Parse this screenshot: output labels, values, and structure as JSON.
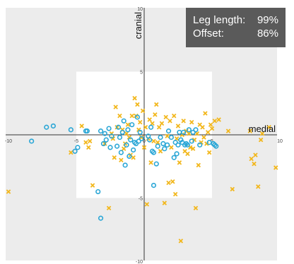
{
  "stats_panel": {
    "rows": [
      {
        "label": "Leg length:",
        "value": "99%"
      },
      {
        "label": "Offset:",
        "value": "86%"
      }
    ]
  },
  "chart_data": {
    "type": "scatter",
    "xlabel": "medial",
    "ylabel": "cranial",
    "xlim": [
      -10,
      10
    ],
    "ylim": [
      -10,
      10
    ],
    "x_ticks": [
      "-10",
      "-5",
      "0",
      "5",
      "10"
    ],
    "y_ticks": [
      "10",
      "5",
      "-5",
      "-10"
    ],
    "safe_zone": {
      "x": [
        -5,
        5
      ],
      "y": [
        -5,
        5
      ]
    },
    "grid": false,
    "colors": {
      "background": "#ececec",
      "safe_zone": "#ffffff",
      "circle_series": "#29a6d6",
      "cross_series": "#f2b71c",
      "stats_panel": "#5a5a5a"
    },
    "series": [
      {
        "marker": "circle",
        "points": [
          [
            -8.3,
            -0.5
          ],
          [
            -7.2,
            0.6
          ],
          [
            -6.7,
            0.7
          ],
          [
            -5.4,
            0.4
          ],
          [
            -5.1,
            -1.3
          ],
          [
            -4.9,
            -1.0
          ],
          [
            -4.3,
            0.3
          ],
          [
            -4.2,
            0.3
          ],
          [
            -3.2,
            0.3
          ],
          [
            -3.0,
            -0.7
          ],
          [
            -2.9,
            0.1
          ],
          [
            -2.8,
            -0.4
          ],
          [
            -2.6,
            0.5
          ],
          [
            -2.5,
            -1.0
          ],
          [
            -2.4,
            -0.1
          ],
          [
            -2.0,
            -0.9
          ],
          [
            -1.9,
            0.6
          ],
          [
            -1.8,
            -0.2
          ],
          [
            -1.7,
            -1.4
          ],
          [
            -1.6,
            0.2
          ],
          [
            -1.5,
            1.1
          ],
          [
            -1.4,
            -2.4
          ],
          [
            -1.3,
            -0.8
          ],
          [
            -1.2,
            0.4
          ],
          [
            -1.1,
            -1.7
          ],
          [
            -1.0,
            -0.4
          ],
          [
            -0.9,
            0.8
          ],
          [
            -0.8,
            -1.2
          ],
          [
            -0.7,
            -0.6
          ],
          [
            -0.6,
            -0.7
          ],
          [
            -0.5,
            1.4
          ],
          [
            -0.4,
            -0.5
          ],
          [
            -0.3,
            0.2
          ],
          [
            -0.2,
            -0.3
          ],
          [
            0.3,
            -0.1
          ],
          [
            0.4,
            -0.4
          ],
          [
            0.5,
            0.6
          ],
          [
            0.6,
            -1.3
          ],
          [
            0.7,
            -1.4
          ],
          [
            0.9,
            -2.3
          ],
          [
            1.0,
            -0.9
          ],
          [
            1.2,
            -0.2
          ],
          [
            1.4,
            -0.7
          ],
          [
            1.5,
            -1.1
          ],
          [
            1.7,
            -0.8
          ],
          [
            1.8,
            0.3
          ],
          [
            2.0,
            -0.2
          ],
          [
            2.2,
            -1.8
          ],
          [
            2.3,
            -0.6
          ],
          [
            2.4,
            -1.5
          ],
          [
            2.5,
            -0.8
          ],
          [
            2.6,
            0.2
          ],
          [
            2.7,
            -0.4
          ],
          [
            2.8,
            -0.6
          ],
          [
            2.9,
            0.2
          ],
          [
            3.0,
            -0.8
          ],
          [
            3.1,
            -0.7
          ],
          [
            3.2,
            -0.8
          ],
          [
            3.3,
            0.4
          ],
          [
            3.5,
            -0.5
          ],
          [
            3.6,
            0.2
          ],
          [
            3.8,
            0.4
          ],
          [
            4.1,
            -0.8
          ],
          [
            4.8,
            -0.6
          ],
          [
            5.1,
            -0.7
          ],
          [
            5.2,
            -0.8
          ],
          [
            5.3,
            -0.9
          ],
          [
            0.7,
            -4.0
          ],
          [
            -3.4,
            -4.5
          ],
          [
            -3.2,
            -6.6
          ]
        ]
      },
      {
        "marker": "cross",
        "points": [
          [
            -10.0,
            -4.5
          ],
          [
            -5.4,
            -1.4
          ],
          [
            -4.6,
            0.7
          ],
          [
            -4.3,
            -0.6
          ],
          [
            -4.1,
            -1.0
          ],
          [
            -4.0,
            -0.5
          ],
          [
            -3.8,
            -4.0
          ],
          [
            -2.9,
            -0.7
          ],
          [
            -2.6,
            -5.8
          ],
          [
            -2.4,
            0.1
          ],
          [
            -2.3,
            -0.3
          ],
          [
            -2.2,
            -1.8
          ],
          [
            -2.1,
            2.2
          ],
          [
            -2.0,
            0.6
          ],
          [
            -1.8,
            1.5
          ],
          [
            -1.7,
            -2.0
          ],
          [
            -1.6,
            0.4
          ],
          [
            -1.5,
            -1.1
          ],
          [
            -1.4,
            -0.7
          ],
          [
            -1.3,
            0.1
          ],
          [
            -1.2,
            0.8
          ],
          [
            -1.1,
            -0.2
          ],
          [
            -1.0,
            -1.6
          ],
          [
            -0.9,
            1.5
          ],
          [
            -0.8,
            -1.8
          ],
          [
            -0.7,
            2.9
          ],
          [
            -0.6,
            1.5
          ],
          [
            -0.5,
            2.4
          ],
          [
            -0.4,
            0.4
          ],
          [
            -0.3,
            1.0
          ],
          [
            -0.2,
            -0.2
          ],
          [
            -0.1,
            1.9
          ],
          [
            0.0,
            -1.0
          ],
          [
            0.1,
            0.6
          ],
          [
            0.2,
            -5.5
          ],
          [
            0.3,
            -0.3
          ],
          [
            0.4,
            1.2
          ],
          [
            0.5,
            -2.2
          ],
          [
            0.6,
            0.9
          ],
          [
            0.7,
            -0.5
          ],
          [
            0.8,
            1.6
          ],
          [
            0.9,
            2.4
          ],
          [
            1.0,
            -0.6
          ],
          [
            1.1,
            0.6
          ],
          [
            1.2,
            -1.3
          ],
          [
            1.3,
            0.9
          ],
          [
            1.5,
            -5.4
          ],
          [
            1.6,
            1.4
          ],
          [
            1.7,
            -0.1
          ],
          [
            1.8,
            -3.8
          ],
          [
            1.9,
            1.1
          ],
          [
            2.0,
            -1.0
          ],
          [
            2.1,
            -3.7
          ],
          [
            2.2,
            1.5
          ],
          [
            2.3,
            -4.7
          ],
          [
            2.4,
            -0.3
          ],
          [
            2.5,
            0.7
          ],
          [
            2.6,
            -2.2
          ],
          [
            2.7,
            -8.4
          ],
          [
            2.8,
            0.0
          ],
          [
            2.9,
            1.1
          ],
          [
            3.0,
            -1.3
          ],
          [
            3.1,
            0.3
          ],
          [
            3.2,
            -1.5
          ],
          [
            3.3,
            0.1
          ],
          [
            3.4,
            -1.0
          ],
          [
            3.5,
            1.0
          ],
          [
            3.6,
            -1.1
          ],
          [
            3.7,
            -0.4
          ],
          [
            3.8,
            -5.8
          ],
          [
            3.9,
            0.1
          ],
          [
            4.0,
            -2.4
          ],
          [
            4.1,
            0.8
          ],
          [
            4.2,
            -0.6
          ],
          [
            4.3,
            0.6
          ],
          [
            4.4,
            -0.2
          ],
          [
            4.5,
            1.7
          ],
          [
            4.6,
            -0.7
          ],
          [
            4.7,
            0.2
          ],
          [
            4.8,
            -1.4
          ],
          [
            4.9,
            0.8
          ],
          [
            5.0,
            0.5
          ],
          [
            5.2,
            1.1
          ],
          [
            5.5,
            1.2
          ],
          [
            6.2,
            0.3
          ],
          [
            6.5,
            -4.3
          ],
          [
            7.8,
            0.3
          ],
          [
            7.9,
            -1.9
          ],
          [
            8.1,
            -2.3
          ],
          [
            8.4,
            -4.1
          ],
          [
            8.6,
            -0.4
          ],
          [
            9.2,
            0.6
          ],
          [
            9.7,
            -2.6
          ],
          [
            8.2,
            -1.6
          ],
          [
            8.7,
            0.1
          ]
        ]
      }
    ]
  }
}
